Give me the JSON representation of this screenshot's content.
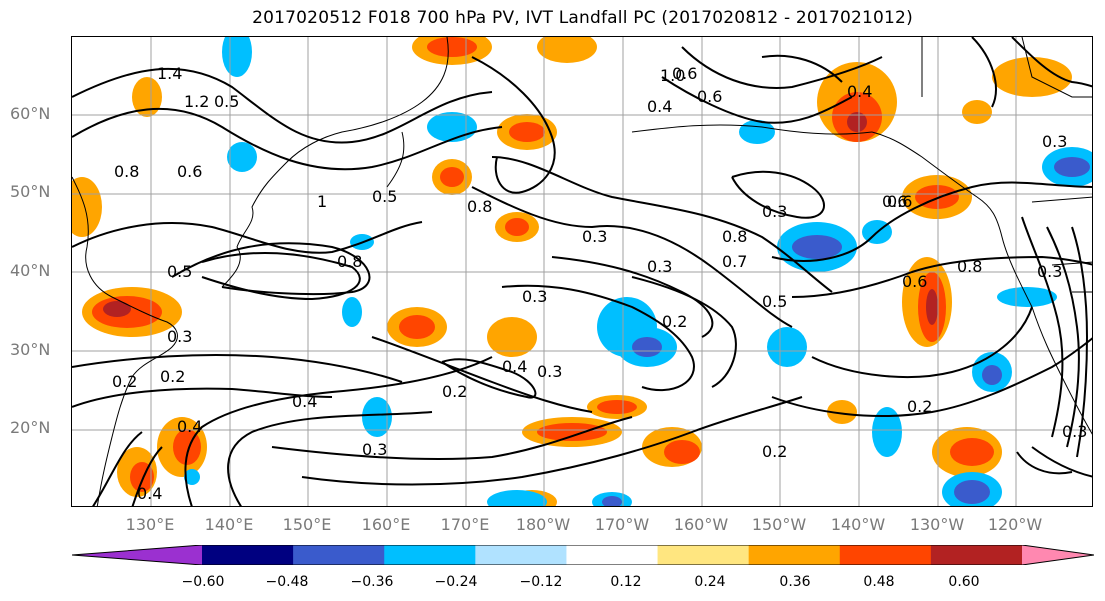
{
  "title": "2017020512 F018 700 hPa PV, IVT Landfall PC (2017020812 - 2017021012)",
  "lat_labels": [
    "60°N",
    "50°N",
    "40°N",
    "30°N",
    "20°N"
  ],
  "lon_labels": [
    "130°E",
    "140°E",
    "150°E",
    "160°E",
    "170°E",
    "180°W",
    "170°W",
    "160°W",
    "150°W",
    "140°W",
    "130°W",
    "120°W"
  ],
  "colorbar": {
    "ticks": [
      "−0.60",
      "−0.48",
      "−0.36",
      "−0.24",
      "−0.12",
      "0.12",
      "0.24",
      "0.36",
      "0.48",
      "0.60"
    ],
    "colors": [
      "#9b30d0",
      "#000080",
      "#3a5bcc",
      "#00bfff",
      "#b0e2ff",
      "#ffffff",
      "#ffe680",
      "#ffa500",
      "#ff4500",
      "#b22222",
      "#ff88b0"
    ]
  },
  "contour_labels": [
    "1.4",
    "1.2",
    "0.5",
    "0.6",
    "0.8",
    "0.5",
    "1",
    "0.8",
    "0.4",
    "0.6",
    "1.0",
    "0.6",
    "0.6",
    "0.3",
    "0.8",
    "0.5",
    "0.3",
    "0.3",
    "0.2",
    "0.3",
    "0.5",
    "0.7",
    "0.8",
    "0.4",
    "0.6",
    "0.3",
    "0.6",
    "0.8",
    "0.2",
    "0.4",
    "0.3",
    "0.2",
    "0.4",
    "0.3",
    "0.2",
    "0.2",
    "0.4",
    "0.3",
    "0.4",
    "0.3",
    "0.2",
    "0.3"
  ]
}
